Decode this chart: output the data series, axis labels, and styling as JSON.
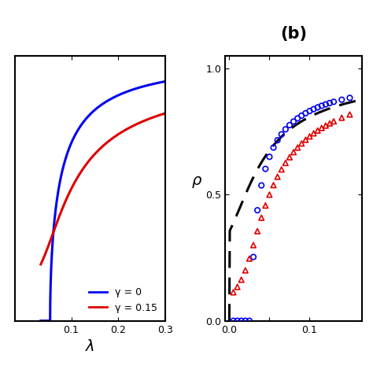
{
  "title_b": "(b)",
  "panel_a": {
    "gamma0_color": "#0000ee",
    "gamma015_color": "#dd0000",
    "legend_labels": [
      "γ = 0",
      "γ = 0.15"
    ],
    "xlabel": "λ",
    "xlim": [
      -0.02,
      0.3
    ],
    "ylim": [
      0.0,
      1.05
    ],
    "xticks": [
      0.1,
      0.2,
      0.3
    ],
    "xticklabels": [
      "0.1",
      "0.2",
      "0.3"
    ]
  },
  "panel_b": {
    "ylabel": "ρ",
    "xlim": [
      -0.005,
      0.165
    ],
    "ylim": [
      0.0,
      1.05
    ],
    "yticks": [
      0.0,
      0.5,
      1.0
    ],
    "yticklabels": [
      "0.0",
      "0.5",
      "1.0"
    ],
    "xticks": [
      0.0,
      0.05,
      0.1
    ],
    "xticklabels": [
      "0.0",
      "",
      "0.1"
    ],
    "circle_color": "#0000ee",
    "triangle_color": "#dd0000",
    "dashed_color": "#000000"
  }
}
